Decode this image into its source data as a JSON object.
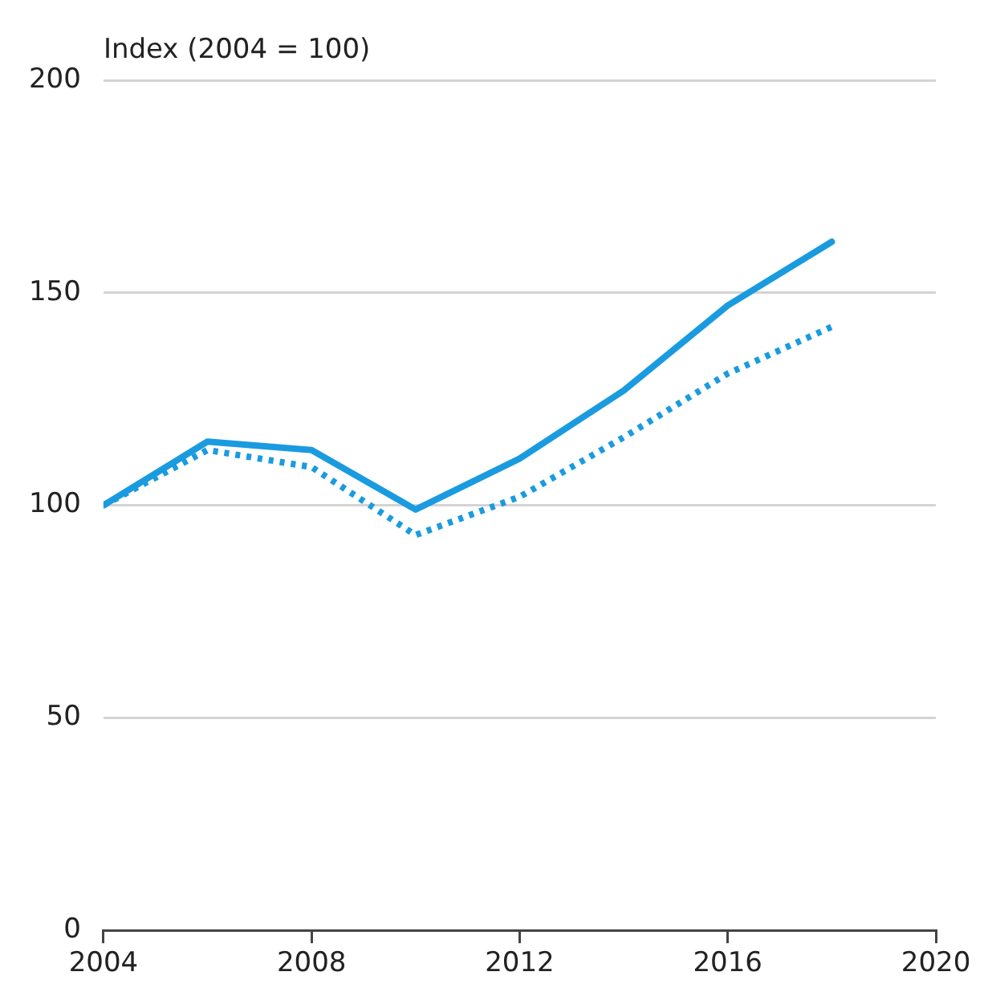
{
  "chart_data": {
    "type": "line",
    "ylabel": "Index (2004 = 100)",
    "x": [
      2004,
      2006,
      2008,
      2010,
      2012,
      2014,
      2016,
      2018
    ],
    "series": [
      {
        "color": "#1a9be0",
        "line_style": "solid",
        "values": [
          100,
          115,
          113,
          99,
          111,
          127,
          147,
          162
        ]
      },
      {
        "color": "#1a9be0",
        "line_style": "dotted",
        "values": [
          100,
          113,
          109,
          93,
          102,
          116,
          131,
          142
        ]
      }
    ],
    "xlim": [
      2004,
      2020
    ],
    "xticks": [
      2004,
      2008,
      2012,
      2016,
      2020
    ],
    "ylim": [
      0,
      200
    ],
    "yticks": [
      0,
      50,
      100,
      150,
      200
    ],
    "grid": "y",
    "legend": false,
    "marker": "none"
  }
}
